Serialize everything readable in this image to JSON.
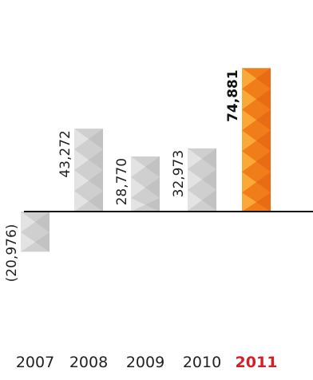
{
  "chart_data": {
    "type": "bar",
    "categories": [
      "2007",
      "2008",
      "2009",
      "2010",
      "2011"
    ],
    "values": [
      -20976,
      43272,
      28770,
      32973,
      74881
    ],
    "value_labels": [
      "(20,976)",
      "43,272",
      "28,770",
      "32,973",
      "74,881"
    ],
    "highlight_index": 4,
    "title": "",
    "xlabel": "",
    "ylabel": "",
    "ylim": [
      -40000,
      80000
    ],
    "grid": false,
    "legend": "none",
    "colors": {
      "bar": "#cfcfcf",
      "bar_facet_light": "#e6e6e6",
      "bar_facet_dark": "#b8b8b8",
      "highlight_bar": "#f07d1a",
      "highlight_facet_light": "#fbb040",
      "highlight_facet_dark": "#e25f10",
      "highlight_text": "#d22027",
      "axis": "#111111"
    }
  }
}
